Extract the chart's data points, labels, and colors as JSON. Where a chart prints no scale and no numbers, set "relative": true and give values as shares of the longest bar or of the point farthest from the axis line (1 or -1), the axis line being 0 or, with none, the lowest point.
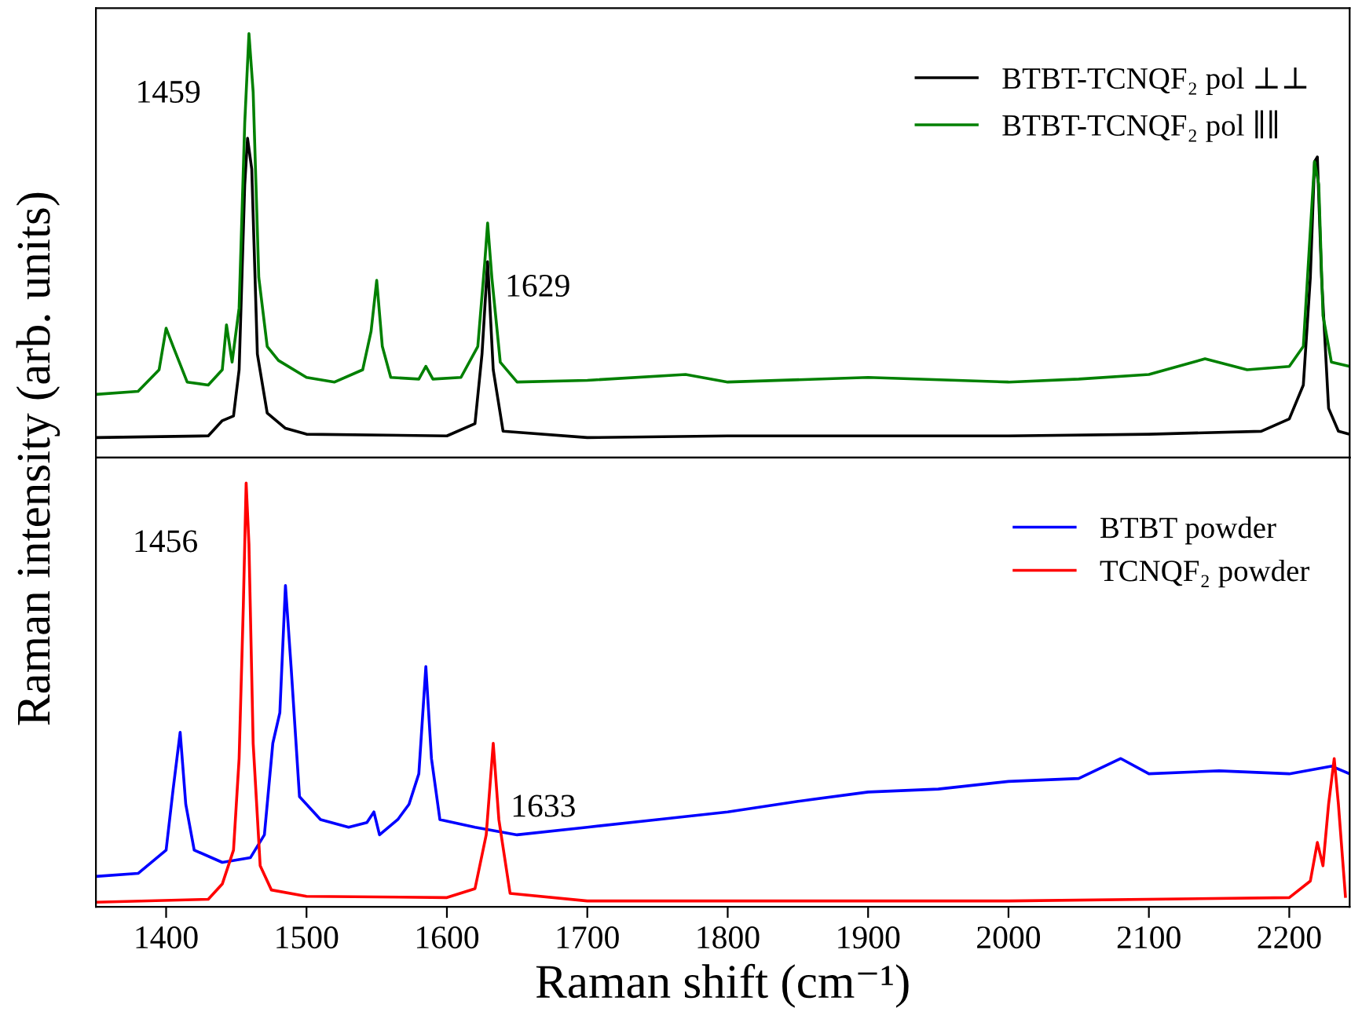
{
  "chart_data": [
    {
      "type": "line",
      "relative": true,
      "tick_labels": false,
      "grid": false,
      "legend": "top right",
      "ylabel": "Raman intensity (arb. units)",
      "xlim": [
        1350,
        2243
      ],
      "xticks": [
        1400,
        1500,
        1600,
        1700,
        1800,
        1900,
        2000,
        2100,
        2200
      ],
      "annotations": [
        {
          "text": "1459",
          "x": 1459,
          "y": 1.0
        },
        {
          "text": "1629",
          "x": 1629,
          "y": 0.553
        }
      ],
      "series": [
        {
          "name": "BTBT-TCNQF₂ pol ⊥⊥",
          "color": "#000000",
          "x": [
            1350,
            1430,
            1440,
            1448,
            1452,
            1456,
            1458,
            1461,
            1465,
            1472,
            1485,
            1500,
            1600,
            1620,
            1625,
            1629,
            1633,
            1640,
            1700,
            1800,
            1900,
            2000,
            2100,
            2180,
            2200,
            2210,
            2215,
            2218,
            2220,
            2223,
            2228,
            2235,
            2243
          ],
          "values": [
            0.047,
            0.051,
            0.087,
            0.098,
            0.207,
            0.644,
            0.753,
            0.68,
            0.244,
            0.105,
            0.069,
            0.055,
            0.051,
            0.08,
            0.244,
            0.462,
            0.207,
            0.062,
            0.047,
            0.051,
            0.051,
            0.051,
            0.055,
            0.062,
            0.091,
            0.171,
            0.425,
            0.698,
            0.709,
            0.425,
            0.116,
            0.062,
            0.055
          ]
        },
        {
          "name": "BTBT-TCNQF₂ pol ∥∥",
          "color": "#008000",
          "x": [
            1350,
            1380,
            1395,
            1400,
            1405,
            1415,
            1430,
            1440,
            1443,
            1447,
            1452,
            1456,
            1459,
            1462,
            1466,
            1472,
            1480,
            1500,
            1520,
            1540,
            1546,
            1550,
            1554,
            1560,
            1580,
            1585,
            1590,
            1610,
            1622,
            1627,
            1629,
            1632,
            1638,
            1650,
            1700,
            1770,
            1800,
            1900,
            2000,
            2050,
            2100,
            2140,
            2170,
            2200,
            2210,
            2215,
            2218,
            2221,
            2224,
            2230,
            2243
          ],
          "values": [
            0.149,
            0.156,
            0.207,
            0.305,
            0.262,
            0.178,
            0.171,
            0.207,
            0.313,
            0.225,
            0.353,
            0.789,
            1.0,
            0.862,
            0.425,
            0.262,
            0.229,
            0.189,
            0.178,
            0.207,
            0.298,
            0.418,
            0.262,
            0.189,
            0.185,
            0.215,
            0.185,
            0.189,
            0.262,
            0.462,
            0.553,
            0.425,
            0.225,
            0.178,
            0.182,
            0.196,
            0.178,
            0.189,
            0.178,
            0.185,
            0.196,
            0.233,
            0.207,
            0.215,
            0.262,
            0.535,
            0.698,
            0.644,
            0.335,
            0.225,
            0.215
          ]
        }
      ]
    },
    {
      "type": "line",
      "relative": true,
      "tick_labels": "x",
      "grid": false,
      "legend": "top right",
      "xlabel": "Raman shift (cm⁻¹)",
      "xlim": [
        1350,
        2243
      ],
      "xticks": [
        1400,
        1500,
        1600,
        1700,
        1800,
        1900,
        2000,
        2100,
        2200
      ],
      "annotations": [
        {
          "text": "1456",
          "x": 1457,
          "y": 1.0
        },
        {
          "text": "1633",
          "x": 1633,
          "y": 0.386
        }
      ],
      "series": [
        {
          "name": "BTBT powder",
          "color": "#0000ff",
          "x": [
            1350,
            1380,
            1400,
            1405,
            1410,
            1414,
            1420,
            1440,
            1460,
            1470,
            1476,
            1481,
            1485,
            1489,
            1495,
            1510,
            1530,
            1543,
            1548,
            1552,
            1565,
            1573,
            1580,
            1585,
            1589,
            1595,
            1620,
            1650,
            1700,
            1750,
            1800,
            1850,
            1900,
            1950,
            2000,
            2050,
            2080,
            2100,
            2150,
            2200,
            2230,
            2243
          ],
          "values": [
            0.072,
            0.079,
            0.134,
            0.278,
            0.412,
            0.242,
            0.134,
            0.105,
            0.116,
            0.17,
            0.386,
            0.458,
            0.758,
            0.567,
            0.26,
            0.206,
            0.188,
            0.199,
            0.224,
            0.17,
            0.206,
            0.242,
            0.314,
            0.567,
            0.35,
            0.206,
            0.188,
            0.17,
            0.188,
            0.206,
            0.224,
            0.249,
            0.271,
            0.278,
            0.296,
            0.303,
            0.35,
            0.314,
            0.321,
            0.314,
            0.332,
            0.314
          ]
        },
        {
          "name": "TCNQF₂ powder",
          "color": "#ff0000",
          "x": [
            1350,
            1430,
            1440,
            1448,
            1452,
            1455,
            1457,
            1459,
            1462,
            1467,
            1475,
            1500,
            1600,
            1620,
            1628,
            1633,
            1637,
            1645,
            1700,
            2000,
            2200,
            2215,
            2220,
            2224,
            2228,
            2232,
            2235,
            2240
          ],
          "values": [
            0.011,
            0.018,
            0.054,
            0.134,
            0.35,
            0.711,
            1.0,
            0.856,
            0.386,
            0.097,
            0.04,
            0.025,
            0.022,
            0.043,
            0.17,
            0.386,
            0.206,
            0.032,
            0.014,
            0.014,
            0.022,
            0.061,
            0.152,
            0.097,
            0.242,
            0.35,
            0.242,
            0.025
          ]
        }
      ]
    }
  ]
}
